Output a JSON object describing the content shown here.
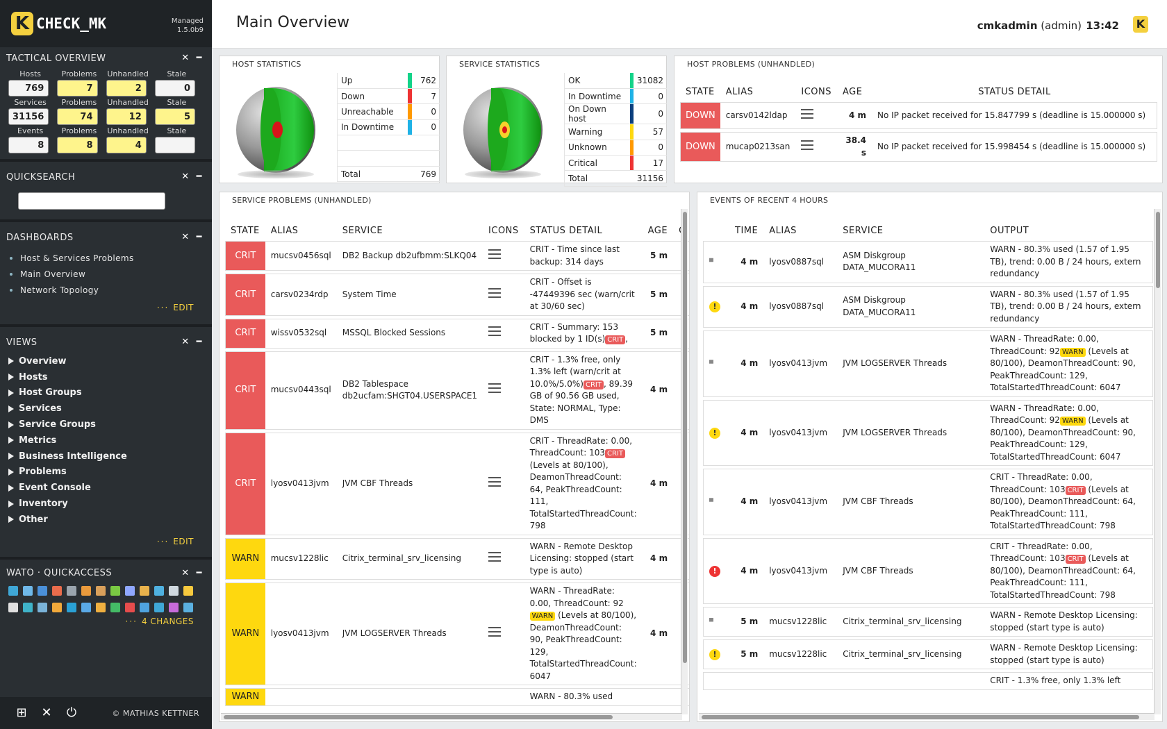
{
  "sidebar": {
    "logo_text": "CHECK_MK",
    "logo_letter": "K",
    "edition": "Managed",
    "version": "1.5.0b9",
    "tactical": {
      "title": "TACTICAL OVERVIEW",
      "headers_hosts": [
        "Hosts",
        "Problems",
        "Unhandled",
        "Stale"
      ],
      "headers_services": [
        "Services",
        "Problems",
        "Unhandled",
        "Stale"
      ],
      "headers_events": [
        "Events",
        "Problems",
        "Unhandled",
        "Stale"
      ],
      "hosts": [
        "769",
        "7",
        "2",
        "0"
      ],
      "services": [
        "31156",
        "74",
        "12",
        "5"
      ],
      "events": [
        "8",
        "8",
        "4",
        ""
      ]
    },
    "quicksearch": {
      "title": "QUICKSEARCH"
    },
    "dashboards": {
      "title": "DASHBOARDS",
      "items": [
        "Host & Services Problems",
        "Main Overview",
        "Network Topology"
      ],
      "edit": "EDIT"
    },
    "views": {
      "title": "VIEWS",
      "items": [
        "Overview",
        "Hosts",
        "Host Groups",
        "Services",
        "Service Groups",
        "Metrics",
        "Business Intelligence",
        "Problems",
        "Event Console",
        "Inventory",
        "Other"
      ],
      "edit": "EDIT"
    },
    "wato": {
      "title": "WATO · QUICKACCESS",
      "changes": "4 CHANGES"
    },
    "copyright": "© MATHIAS KETTNER"
  },
  "header": {
    "title": "Main Overview",
    "user": "cmkadmin",
    "role": "(admin)",
    "time": "13:42"
  },
  "host_stats": {
    "title": "HOST STATISTICS",
    "rows": [
      {
        "label": "Up",
        "value": "762",
        "color": "#13d389"
      },
      {
        "label": "Down",
        "value": "7",
        "color": "#e33"
      },
      {
        "label": "Unreachable",
        "value": "0",
        "color": "#f90"
      },
      {
        "label": "In Downtime",
        "value": "0",
        "color": "#1fb2e6"
      }
    ],
    "total_label": "Total",
    "total": "769"
  },
  "service_stats": {
    "title": "SERVICE STATISTICS",
    "rows": [
      {
        "label": "OK",
        "value": "31082",
        "color": "#13d389"
      },
      {
        "label": "In Downtime",
        "value": "0",
        "color": "#1fb2e6"
      },
      {
        "label": "On Down host",
        "value": "0",
        "color": "#0b3f7d"
      },
      {
        "label": "Warning",
        "value": "57",
        "color": "#fed80f"
      },
      {
        "label": "Unknown",
        "value": "0",
        "color": "#f90"
      },
      {
        "label": "Critical",
        "value": "17",
        "color": "#e33"
      }
    ],
    "total_label": "Total",
    "total": "31156"
  },
  "host_problems": {
    "title": "HOST PROBLEMS (UNHANDLED)",
    "columns": [
      "STATE",
      "ALIAS",
      "ICONS",
      "AGE",
      "STATUS DETAIL"
    ],
    "rows": [
      {
        "state": "DOWN",
        "alias": "carsv0142ldap",
        "age": "4 m",
        "detail": "No IP packet received for 15.847799 s (deadline is 15.000000 s)"
      },
      {
        "state": "DOWN",
        "alias": "mucap0213san",
        "age": "38.4 s",
        "detail": "No IP packet received for 15.998454 s (deadline is 15.000000 s)"
      }
    ]
  },
  "service_problems": {
    "title": "SERVICE PROBLEMS (UNHANDLED)",
    "columns": [
      "STATE",
      "ALIAS",
      "SERVICE",
      "ICONS",
      "STATUS DETAIL",
      "AGE",
      "C"
    ],
    "rows": [
      {
        "state": "CRIT",
        "alias": "mucsv0456sql",
        "service": "DB2 Backup db2ufbmm:SLKQ04",
        "detail": "CRIT - Time since last backup: 314 days",
        "tag": "",
        "detail_after": "",
        "age": "5 m"
      },
      {
        "state": "CRIT",
        "alias": "carsv0234rdp",
        "service": "System Time",
        "detail": "CRIT - Offset is -47449396 sec (warn/crit at 30/60 sec)",
        "tag": "",
        "detail_after": "",
        "age": "5 m"
      },
      {
        "state": "CRIT",
        "alias": "wissv0532sql",
        "service": "MSSQL Blocked Sessions",
        "detail": "CRIT - Summary: 153 blocked by 1 ID(s)",
        "tag": "CRIT",
        "detail_after": ",",
        "age": "5 m"
      },
      {
        "state": "CRIT",
        "alias": "mucsv0443sql",
        "service": "DB2 Tablespace db2ucfam:SHGT04.USERSPACE1",
        "detail": "CRIT - 1.3% free, only 1.3% left (warn/crit at 10.0%/5.0%)",
        "tag": "CRIT",
        "detail_after": ", 89.39 GB of 90.56 GB used, State: NORMAL, Type: DMS",
        "age": "4 m"
      },
      {
        "state": "CRIT",
        "alias": "lyosv0413jvm",
        "service": "JVM CBF Threads",
        "detail": "CRIT - ThreadRate: 0.00, ThreadCount: 103",
        "tag": "CRIT",
        "detail_after": " (Levels at 80/100), DeamonThreadCount: 64, PeakThreadCount: 111, TotalStartedThreadCount: 798",
        "age": "4 m"
      },
      {
        "state": "WARN",
        "alias": "mucsv1228lic",
        "service": "Citrix_terminal_srv_licensing",
        "detail": "WARN - Remote Desktop Licensing: stopped (start type is auto)",
        "tag": "",
        "detail_after": "",
        "age": "4 m"
      },
      {
        "state": "WARN",
        "alias": "lyosv0413jvm",
        "service": "JVM LOGSERVER Threads",
        "detail": "WARN - ThreadRate: 0.00, ThreadCount: 92",
        "tag": "WARN",
        "detail_after": " (Levels at 80/100), DeamonThreadCount: 90, PeakThreadCount: 129, TotalStartedThreadCount: 6047",
        "age": "4 m"
      },
      {
        "state": "WARN",
        "alias": "",
        "service": "",
        "detail": "WARN - 80.3% used",
        "tag": "",
        "detail_after": "",
        "age": ""
      }
    ]
  },
  "events": {
    "title": "EVENTS OF RECENT 4 HOURS",
    "columns": [
      "",
      "TIME",
      "ALIAS",
      "SERVICE",
      "OUTPUT"
    ],
    "rows": [
      {
        "icon": "speaker-icon",
        "time": "4 m",
        "alias": "lyosv0887sql",
        "service": "ASM Diskgroup DATA_MUCORA11",
        "output": "WARN - 80.3% used (1.57 of 1.95 TB), trend: 0.00 B / 24 hours, extern redundancy",
        "tag": "",
        "after": ""
      },
      {
        "icon": "warn-icon",
        "time": "4 m",
        "alias": "lyosv0887sql",
        "service": "ASM Diskgroup DATA_MUCORA11",
        "output": "WARN - 80.3% used (1.57 of 1.95 TB), trend: 0.00 B / 24 hours, extern redundancy",
        "tag": "",
        "after": ""
      },
      {
        "icon": "speaker-icon",
        "time": "4 m",
        "alias": "lyosv0413jvm",
        "service": "JVM LOGSERVER Threads",
        "output": "WARN - ThreadRate: 0.00, ThreadCount: 92",
        "tag": "WARN",
        "after": " (Levels at 80/100), DeamonThreadCount: 90, PeakThreadCount: 129, TotalStartedThreadCount: 6047"
      },
      {
        "icon": "warn-icon",
        "time": "4 m",
        "alias": "lyosv0413jvm",
        "service": "JVM LOGSERVER Threads",
        "output": "WARN - ThreadRate: 0.00, ThreadCount: 92",
        "tag": "WARN",
        "after": " (Levels at 80/100), DeamonThreadCount: 90, PeakThreadCount: 129, TotalStartedThreadCount: 6047"
      },
      {
        "icon": "speaker-icon",
        "time": "4 m",
        "alias": "lyosv0413jvm",
        "service": "JVM CBF Threads",
        "output": "CRIT - ThreadRate: 0.00, ThreadCount: 103",
        "tag": "CRIT",
        "after": " (Levels at 80/100), DeamonThreadCount: 64, PeakThreadCount: 111, TotalStartedThreadCount: 798"
      },
      {
        "icon": "crit-icon",
        "time": "4 m",
        "alias": "lyosv0413jvm",
        "service": "JVM CBF Threads",
        "output": "CRIT - ThreadRate: 0.00, ThreadCount: 103",
        "tag": "CRIT",
        "after": " (Levels at 80/100), DeamonThreadCount: 64, PeakThreadCount: 111, TotalStartedThreadCount: 798"
      },
      {
        "icon": "speaker-icon",
        "time": "5 m",
        "alias": "mucsv1228lic",
        "service": "Citrix_terminal_srv_licensing",
        "output": "WARN - Remote Desktop Licensing: stopped (start type is auto)",
        "tag": "",
        "after": ""
      },
      {
        "icon": "warn-icon",
        "time": "5 m",
        "alias": "mucsv1228lic",
        "service": "Citrix_terminal_srv_licensing",
        "output": "WARN - Remote Desktop Licensing: stopped (start type is auto)",
        "tag": "",
        "after": ""
      },
      {
        "icon": "",
        "time": "",
        "alias": "",
        "service": "",
        "output": "CRIT - 1.3% free, only 1.3% left",
        "tag": "",
        "after": ""
      }
    ]
  }
}
